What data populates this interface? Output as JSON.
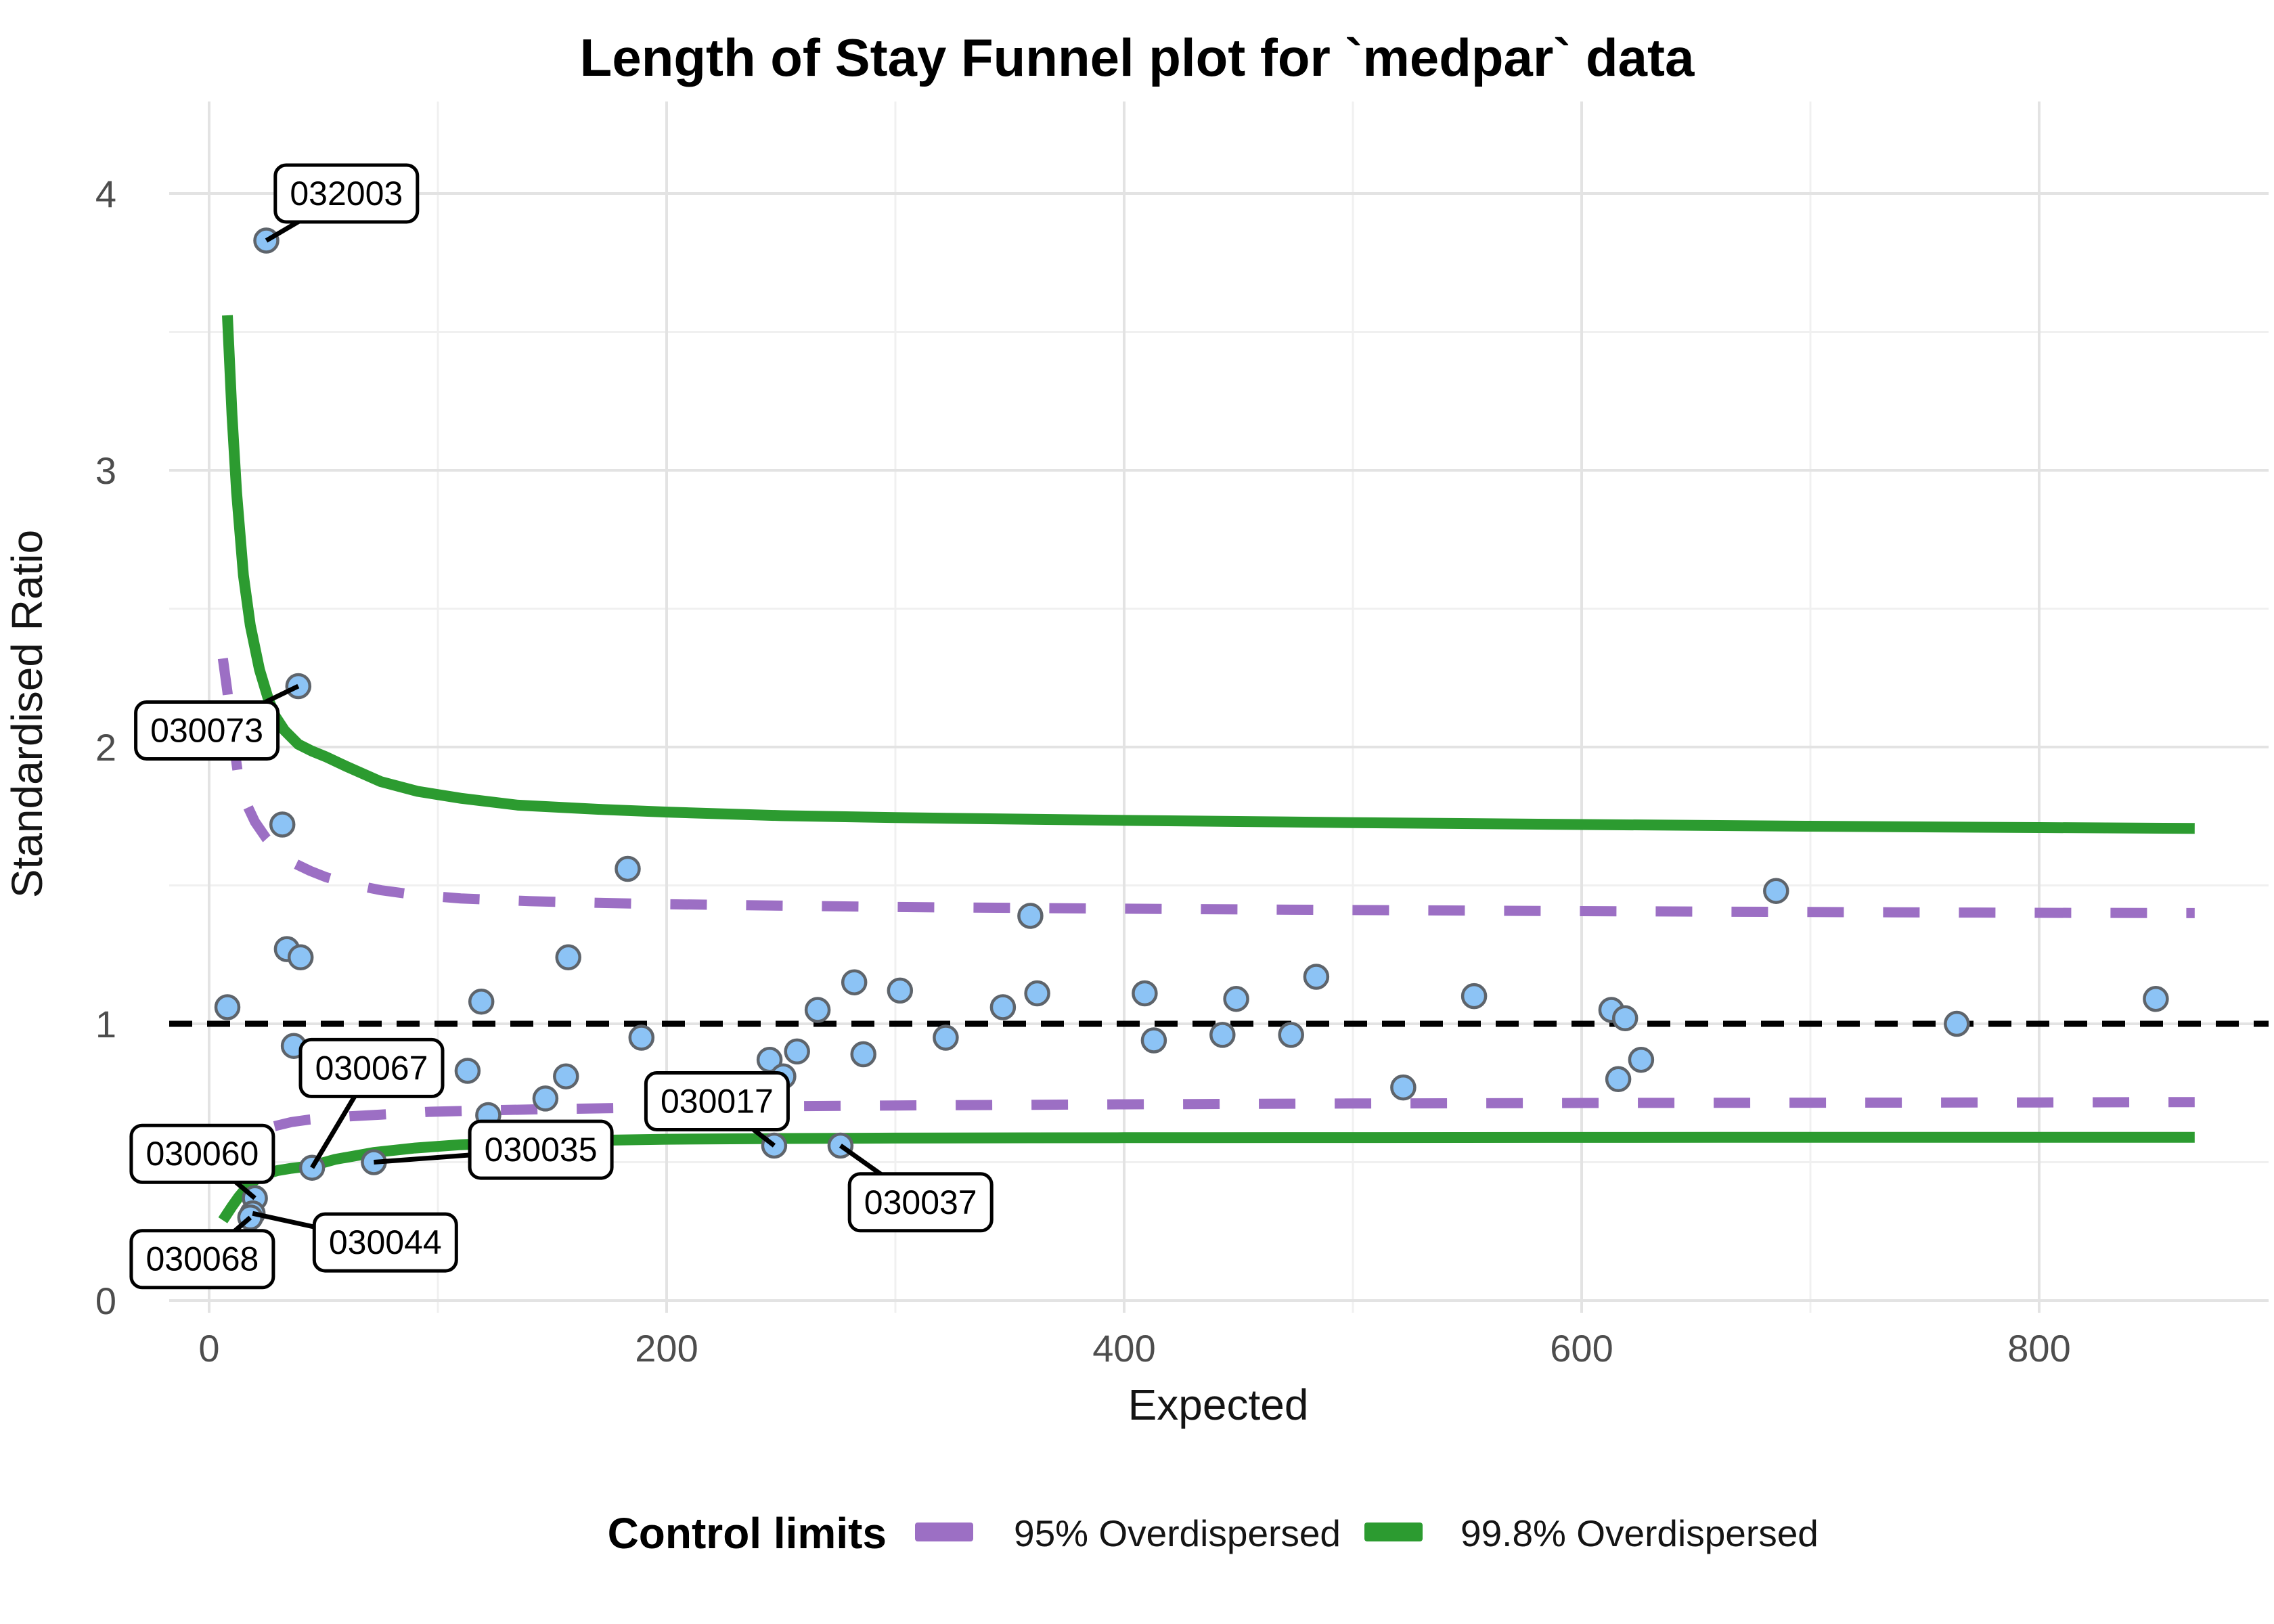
{
  "title": "Length of Stay Funnel plot for `medpar` data",
  "axes": {
    "x": {
      "label": "Expected",
      "ticks": [
        0,
        200,
        400,
        600,
        800
      ],
      "minor_ticks": [
        100,
        300,
        500,
        700
      ],
      "range": [
        -20,
        905
      ]
    },
    "y": {
      "label": "Standardised Ratio",
      "ticks": [
        0,
        1,
        2,
        3,
        4
      ],
      "minor_ticks": [
        0.5,
        1.5,
        2.5,
        3.5
      ],
      "range": [
        0,
        4.35
      ]
    }
  },
  "legend": {
    "title": "Control limits",
    "items": [
      {
        "label": "95% Overdispersed",
        "color": "#9c6fc4",
        "style": "dashed"
      },
      {
        "label": "99.8% Overdispersed",
        "color": "#2c9b30",
        "style": "solid"
      }
    ]
  },
  "colors": {
    "point_fill": "#8cc3f5",
    "point_stroke": "#5e646b",
    "reference_line": "#000000",
    "grid_major": "#e3e3e3",
    "grid_minor": "#f0f0f0",
    "label_box_fill": "#ffffff",
    "label_box_border": "#000000"
  },
  "chart_data": {
    "type": "scatter",
    "title": "Length of Stay Funnel plot for `medpar` data",
    "xlabel": "Expected",
    "ylabel": "Standardised Ratio",
    "xlim": [
      -20,
      905
    ],
    "ylim": [
      0,
      4.35
    ],
    "grid": true,
    "legend_position": "bottom",
    "reference_line": 1.0,
    "points": [
      [
        8,
        1.06
      ],
      [
        32,
        1.72
      ],
      [
        34,
        1.27
      ],
      [
        40,
        1.24
      ],
      [
        37,
        0.92
      ],
      [
        113,
        0.83
      ],
      [
        119,
        1.08
      ],
      [
        122,
        0.67
      ],
      [
        147,
        0.73
      ],
      [
        156,
        0.81
      ],
      [
        157,
        1.24
      ],
      [
        183,
        1.56
      ],
      [
        189,
        0.95
      ],
      [
        245,
        0.87
      ],
      [
        251,
        0.81
      ],
      [
        257,
        0.9
      ],
      [
        266,
        1.05
      ],
      [
        282,
        1.15
      ],
      [
        286,
        0.89
      ],
      [
        302,
        1.12
      ],
      [
        322,
        0.95
      ],
      [
        347,
        1.06
      ],
      [
        359,
        1.39
      ],
      [
        362,
        1.11
      ],
      [
        409,
        1.11
      ],
      [
        413,
        0.94
      ],
      [
        443,
        0.96
      ],
      [
        449,
        1.09
      ],
      [
        473,
        0.96
      ],
      [
        484,
        1.17
      ],
      [
        522,
        0.77
      ],
      [
        553,
        1.1
      ],
      [
        613,
        1.05
      ],
      [
        616,
        0.8
      ],
      [
        619,
        1.02
      ],
      [
        626,
        0.87
      ],
      [
        685,
        1.48
      ],
      [
        764,
        1.0
      ],
      [
        851,
        1.09
      ]
    ],
    "labeled_points": [
      {
        "label": "032003",
        "x": 25,
        "y": 3.83,
        "lx": 60,
        "ly": 4.0
      },
      {
        "label": "030073",
        "x": 39,
        "y": 2.22,
        "lx": -1,
        "ly": 2.06
      },
      {
        "label": "030067",
        "x": 45,
        "y": 0.48,
        "lx": 71,
        "ly": 0.84
      },
      {
        "label": "030060",
        "x": 20,
        "y": 0.37,
        "lx": -3,
        "ly": 0.53
      },
      {
        "label": "030044",
        "x": 19,
        "y": 0.315,
        "lx": 77,
        "ly": 0.21
      },
      {
        "label": "030068",
        "x": 18,
        "y": 0.3,
        "lx": -3,
        "ly": 0.15
      },
      {
        "label": "030035",
        "x": 72,
        "y": 0.5,
        "lx": 145,
        "ly": 0.545
      },
      {
        "label": "030017",
        "x": 247,
        "y": 0.56,
        "lx": 222,
        "ly": 0.72
      },
      {
        "label": "030037",
        "x": 276,
        "y": 0.56,
        "lx": 311,
        "ly": 0.355
      }
    ],
    "curves": [
      {
        "name": "99.8% upper limit",
        "legend": "99.8% Overdispersed",
        "style": "solid",
        "color": "#2c9b30",
        "width": 16,
        "points": [
          [
            8,
            3.56
          ],
          [
            10,
            3.2
          ],
          [
            12,
            2.92
          ],
          [
            15,
            2.62
          ],
          [
            18,
            2.44
          ],
          [
            22,
            2.28
          ],
          [
            26,
            2.17
          ],
          [
            29,
            2.11
          ],
          [
            33,
            2.06
          ],
          [
            39,
            2.01
          ],
          [
            45,
            1.985
          ],
          [
            51,
            1.965
          ],
          [
            60,
            1.93
          ],
          [
            75,
            1.875
          ],
          [
            91,
            1.84
          ],
          [
            110,
            1.815
          ],
          [
            135,
            1.79
          ],
          [
            170,
            1.775
          ],
          [
            200,
            1.765
          ],
          [
            250,
            1.752
          ],
          [
            300,
            1.745
          ],
          [
            400,
            1.735
          ],
          [
            500,
            1.727
          ],
          [
            600,
            1.72
          ],
          [
            700,
            1.714
          ],
          [
            800,
            1.709
          ],
          [
            868,
            1.706
          ]
        ]
      },
      {
        "name": "95% upper limit",
        "legend": "95% Overdispersed",
        "style": "dashed",
        "color": "#9c6fc4",
        "width": 15,
        "points": [
          [
            6,
            2.32
          ],
          [
            8,
            2.2
          ],
          [
            10,
            2.06
          ],
          [
            13,
            1.88
          ],
          [
            16,
            1.8
          ],
          [
            20,
            1.73
          ],
          [
            25,
            1.67
          ],
          [
            30,
            1.625
          ],
          [
            36,
            1.585
          ],
          [
            44,
            1.553
          ],
          [
            51,
            1.53
          ],
          [
            60,
            1.508
          ],
          [
            75,
            1.483
          ],
          [
            90,
            1.466
          ],
          [
            110,
            1.453
          ],
          [
            140,
            1.443
          ],
          [
            170,
            1.437
          ],
          [
            200,
            1.432
          ],
          [
            250,
            1.427
          ],
          [
            300,
            1.422
          ],
          [
            400,
            1.416
          ],
          [
            500,
            1.411
          ],
          [
            600,
            1.407
          ],
          [
            700,
            1.404
          ],
          [
            800,
            1.401
          ],
          [
            868,
            1.4
          ]
        ]
      },
      {
        "name": "95% lower limit",
        "legend": "95% Overdispersed",
        "style": "dashed",
        "color": "#9c6fc4",
        "width": 15,
        "points": [
          [
            5,
            0.46
          ],
          [
            7,
            0.5
          ],
          [
            9,
            0.53
          ],
          [
            12,
            0.565
          ],
          [
            15,
            0.585
          ],
          [
            20,
            0.608
          ],
          [
            26,
            0.625
          ],
          [
            30,
            0.633
          ],
          [
            36,
            0.645
          ],
          [
            44,
            0.654
          ],
          [
            52,
            0.66
          ],
          [
            62,
            0.666
          ],
          [
            75,
            0.672
          ],
          [
            96,
            0.682
          ],
          [
            120,
            0.687
          ],
          [
            150,
            0.692
          ],
          [
            200,
            0.698
          ],
          [
            250,
            0.702
          ],
          [
            300,
            0.705
          ],
          [
            400,
            0.709
          ],
          [
            500,
            0.712
          ],
          [
            600,
            0.714
          ],
          [
            700,
            0.715
          ],
          [
            800,
            0.716
          ],
          [
            868,
            0.717
          ]
        ]
      },
      {
        "name": "99.8% lower limit",
        "legend": "99.8% Overdispersed",
        "style": "solid",
        "color": "#2c9b30",
        "width": 16,
        "points": [
          [
            6,
            0.29
          ],
          [
            8,
            0.315
          ],
          [
            10,
            0.34
          ],
          [
            13,
            0.375
          ],
          [
            16,
            0.405
          ],
          [
            20,
            0.435
          ],
          [
            25,
            0.458
          ],
          [
            30,
            0.47
          ],
          [
            36,
            0.478
          ],
          [
            45,
            0.487
          ],
          [
            55,
            0.51
          ],
          [
            72,
            0.535
          ],
          [
            90,
            0.551
          ],
          [
            110,
            0.563
          ],
          [
            135,
            0.572
          ],
          [
            170,
            0.579
          ],
          [
            200,
            0.583
          ],
          [
            250,
            0.5855
          ],
          [
            300,
            0.587
          ],
          [
            400,
            0.5885
          ],
          [
            500,
            0.589
          ],
          [
            600,
            0.5895
          ],
          [
            700,
            0.59
          ],
          [
            800,
            0.59
          ],
          [
            868,
            0.59
          ]
        ]
      }
    ]
  }
}
